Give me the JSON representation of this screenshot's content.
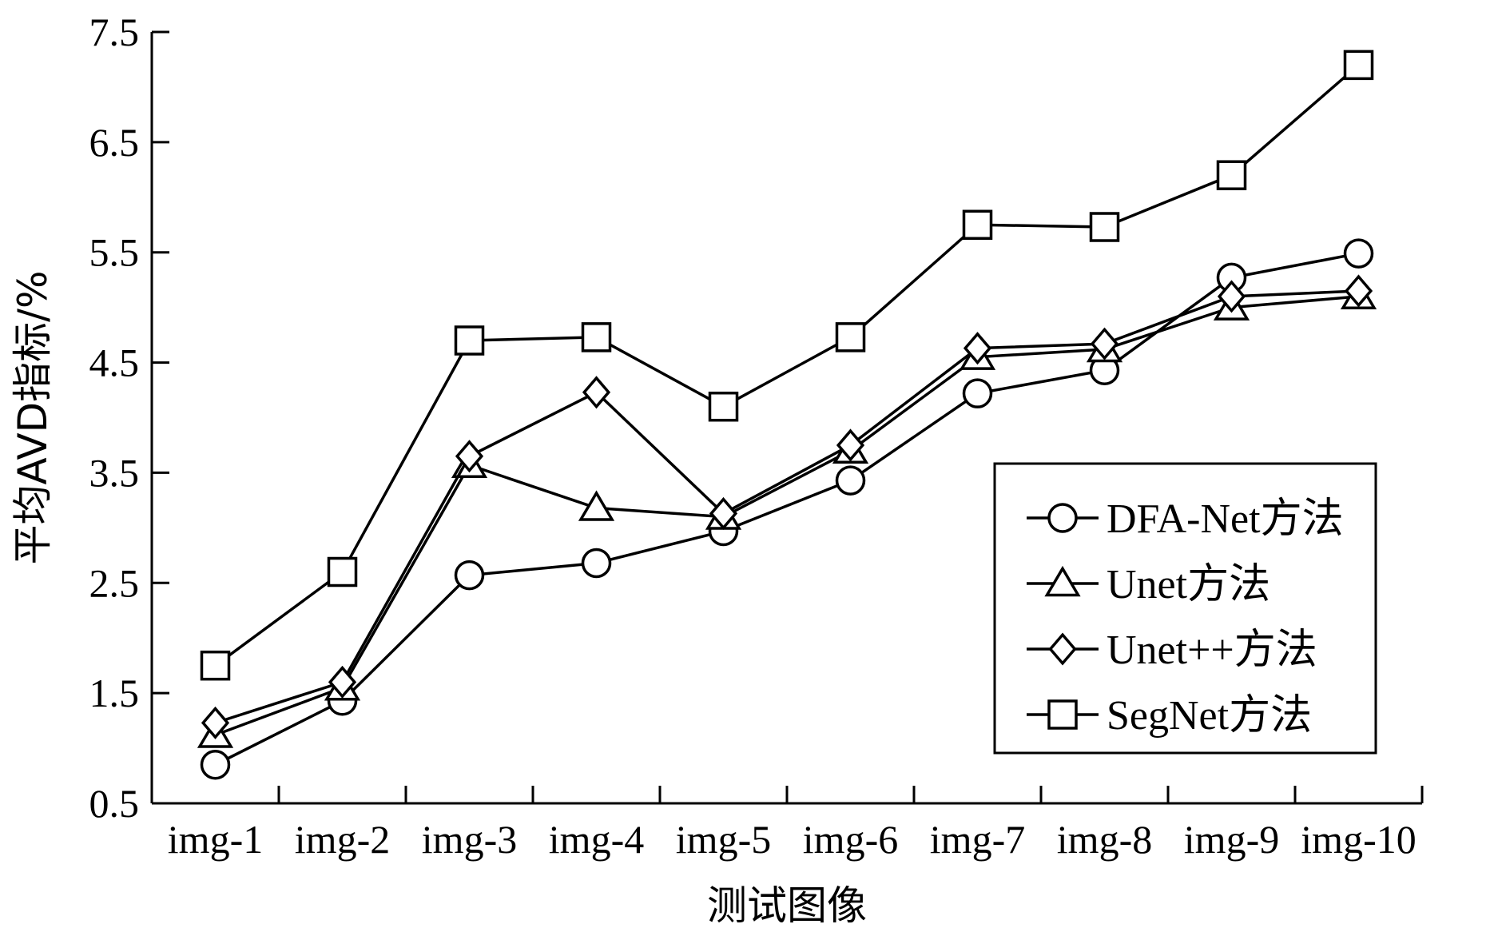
{
  "chart_data": {
    "type": "line",
    "title": "",
    "xlabel": "测试图像",
    "ylabel": "平均AVD指标/%",
    "categories": [
      "img-1",
      "img-2",
      "img-3",
      "img-4",
      "img-5",
      "img-6",
      "img-7",
      "img-8",
      "img-9",
      "img-10"
    ],
    "ylim": [
      0.5,
      7.5
    ],
    "yticks": [
      "0.5",
      "1.5",
      "2.5",
      "3.5",
      "4.5",
      "5.5",
      "6.5",
      "7.5"
    ],
    "grid": false,
    "legend_position": "bottom-right",
    "series": [
      {
        "name": "DFA-Net方法",
        "marker": "circle",
        "color": "#000000",
        "values": [
          0.85,
          1.43,
          2.57,
          2.68,
          2.97,
          3.43,
          4.22,
          4.43,
          5.27,
          5.49
        ]
      },
      {
        "name": "Unet方法",
        "marker": "triangle",
        "color": "#000000",
        "values": [
          1.12,
          1.55,
          3.57,
          3.18,
          3.1,
          3.7,
          4.55,
          4.62,
          5.0,
          5.1
        ]
      },
      {
        "name": "Unet++方法",
        "marker": "diamond",
        "color": "#000000",
        "values": [
          1.23,
          1.6,
          3.65,
          4.23,
          3.13,
          3.75,
          4.63,
          4.67,
          5.1,
          5.15
        ]
      },
      {
        "name": "SegNet方法",
        "marker": "square",
        "color": "#000000",
        "values": [
          1.75,
          2.6,
          4.7,
          4.73,
          4.1,
          4.73,
          5.75,
          5.73,
          6.2,
          7.2
        ]
      }
    ]
  }
}
